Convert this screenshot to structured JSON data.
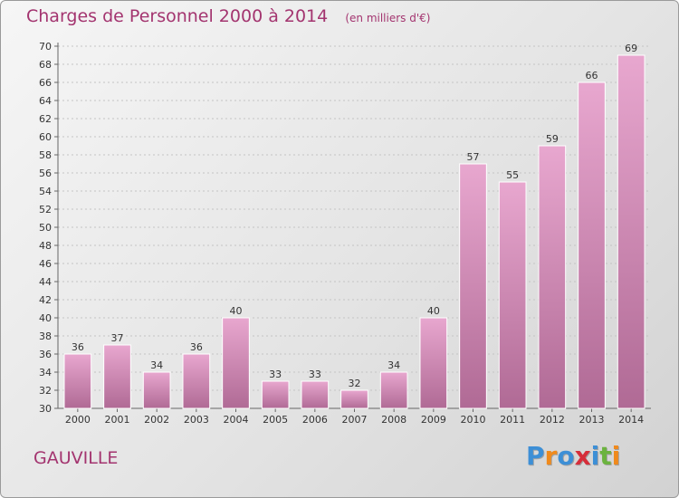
{
  "title": "Charges de Personnel 2000 à 2014",
  "subtitle": "(en milliers d'€)",
  "commune": "GAUVILLE",
  "logo": {
    "letters": [
      {
        "ch": "P",
        "color": "#3d8fd6"
      },
      {
        "ch": "r",
        "color": "#f08a1c"
      },
      {
        "ch": "o",
        "color": "#3d8fd6"
      },
      {
        "ch": "x",
        "color": "#d62e3a"
      },
      {
        "ch": "i",
        "color": "#3d8fd6"
      },
      {
        "ch": "t",
        "color": "#6cb33f"
      },
      {
        "ch": "i",
        "color": "#f08a1c"
      }
    ]
  },
  "colors": {
    "accent": "#a3346f",
    "bar_top": "#e8a7cf",
    "bar_bottom": "#b06a95"
  },
  "chart_data": {
    "type": "bar",
    "categories": [
      "2000",
      "2001",
      "2002",
      "2003",
      "2004",
      "2005",
      "2006",
      "2007",
      "2008",
      "2009",
      "2010",
      "2011",
      "2012",
      "2013",
      "2014"
    ],
    "values": [
      36,
      37,
      34,
      36,
      40,
      33,
      33,
      32,
      34,
      40,
      57,
      55,
      59,
      66,
      69
    ],
    "ylim": [
      30,
      70
    ],
    "yticks": [
      30,
      32,
      34,
      36,
      38,
      40,
      42,
      44,
      46,
      48,
      50,
      52,
      54,
      56,
      58,
      60,
      62,
      64,
      66,
      68,
      70
    ],
    "grid": true,
    "xlabel": "",
    "ylabel": ""
  }
}
